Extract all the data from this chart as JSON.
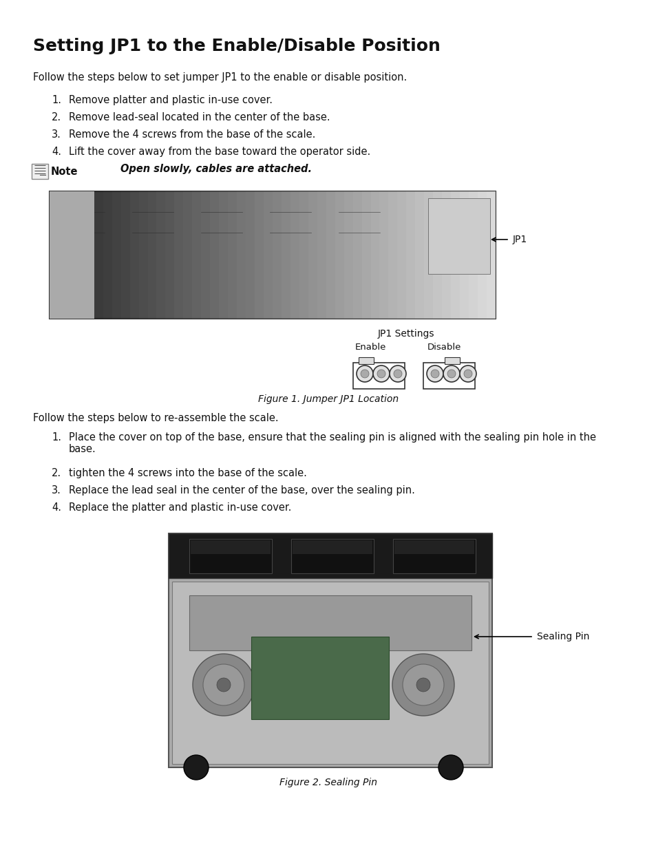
{
  "title": "Setting JP1 to the Enable/Disable Position",
  "bg_color": "#ffffff",
  "text_color": "#000000",
  "intro_text": "Follow the steps below to set jumper JP1 to the enable or disable position.",
  "steps1": [
    "Remove platter and plastic in-use cover.",
    "Remove lead-seal located in the center of the base.",
    "Remove the 4 screws from the base of the scale.",
    "Lift the cover away from the base toward the operator side."
  ],
  "note_italic": "Open slowly, cables are attached.",
  "note_label": "Note",
  "fig1_caption": "Figure 1. Jumper JP1 Location",
  "jp1_label": "JP1",
  "jp1_settings_label": "JP1 Settings",
  "enable_label": "Enable",
  "disable_label": "Disable",
  "intro2_text": "Follow the steps below to re-assemble the scale.",
  "steps2": [
    "Place the cover on top of the base, ensure that the sealing pin is aligned with the sealing pin hole in the\nbase.",
    "tighten the 4 screws into the base of the scale.",
    "Replace the lead seal in the center of the base, over the sealing pin.",
    "Replace the platter and plastic in-use cover."
  ],
  "fig2_caption": "Figure 2. Sealing Pin",
  "sealing_pin_label": "Sealing Pin"
}
